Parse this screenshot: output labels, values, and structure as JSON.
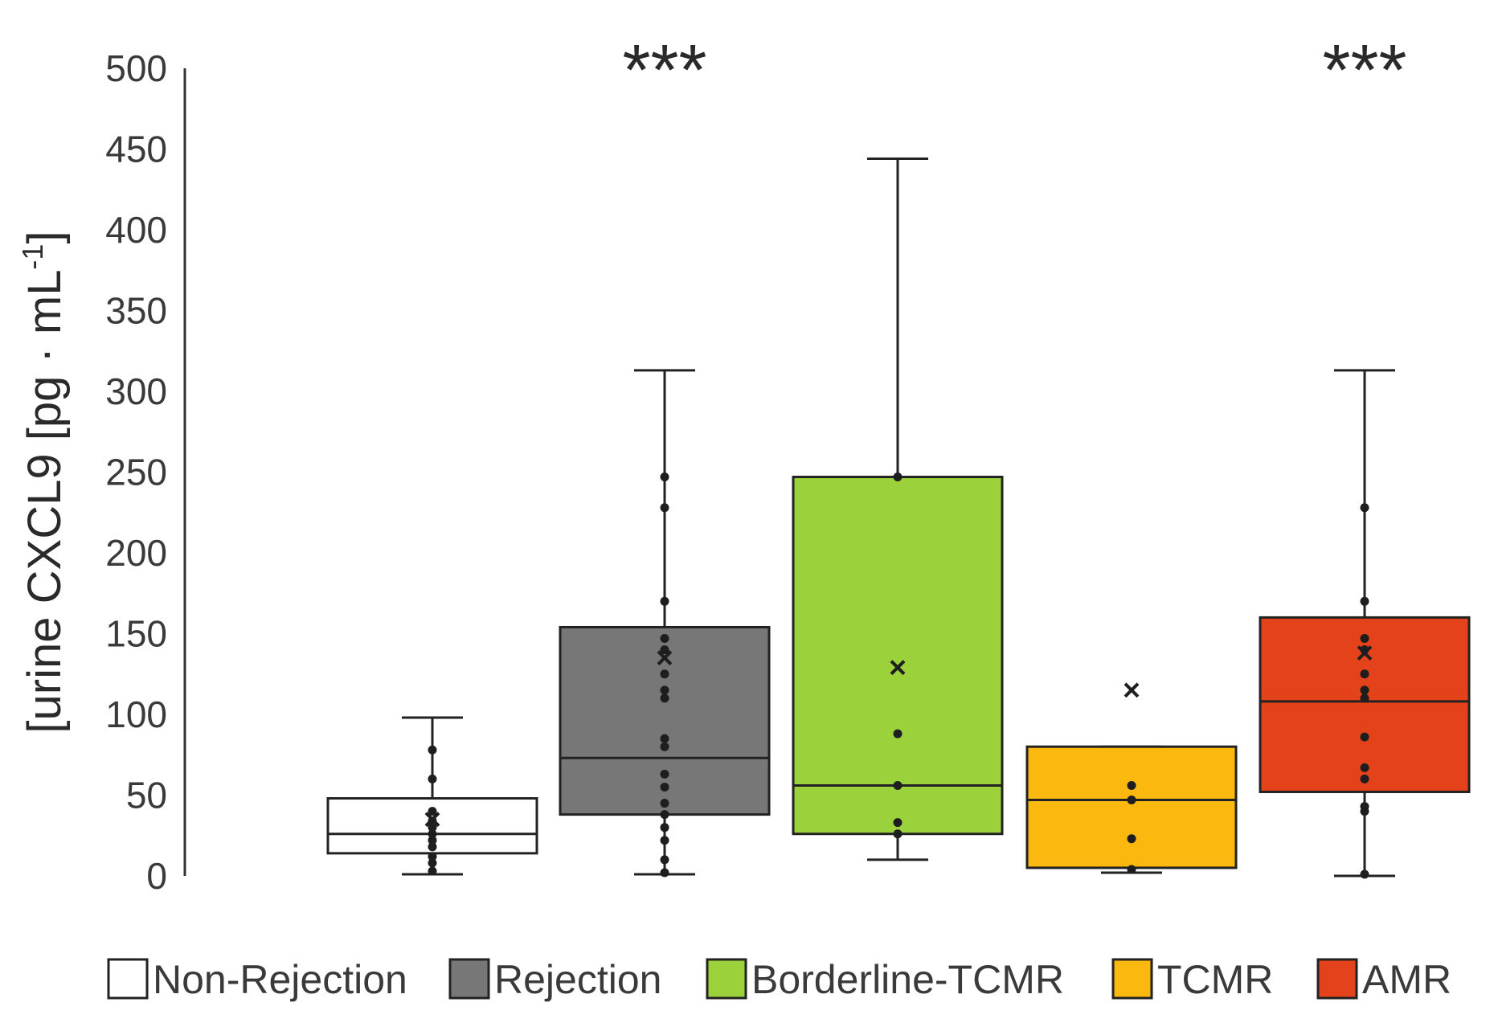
{
  "chart_data": {
    "type": "box",
    "ylabel": "[urine CXCL9 [pg · mL",
    "ylabel_superscript": "-1",
    "ylabel_close": "]",
    "ylim": [
      0,
      500
    ],
    "yticks": [
      0,
      50,
      100,
      150,
      200,
      250,
      300,
      350,
      400,
      450,
      500
    ],
    "grid": false,
    "legend_position": "bottom",
    "series": [
      {
        "name": "Non-Rejection",
        "color": "#ffffff",
        "min": 1,
        "q1": 14,
        "median": 26,
        "q3": 48,
        "max": 98,
        "mean": 35,
        "points": [
          3,
          8,
          12,
          18,
          22,
          26,
          30,
          34,
          40,
          60,
          78
        ],
        "significance": ""
      },
      {
        "name": "Rejection",
        "color": "#777777",
        "min": 1,
        "q1": 38,
        "median": 73,
        "q3": 154,
        "max": 313,
        "mean": 135,
        "points": [
          2,
          10,
          22,
          30,
          38,
          45,
          55,
          63,
          80,
          85,
          110,
          115,
          125,
          140,
          147,
          170,
          228,
          247
        ],
        "significance": "***"
      },
      {
        "name": "Borderline-TCMR",
        "color": "#9bd13b",
        "min": 10,
        "q1": 26,
        "median": 56,
        "q3": 247,
        "max": 444,
        "mean": 129,
        "points": [
          26,
          33,
          56,
          88,
          247
        ],
        "significance": ""
      },
      {
        "name": "TCMR",
        "color": "#fbb80f",
        "min": 2,
        "q1": 5,
        "median": 47,
        "q3": 80,
        "max": 80,
        "mean": 115,
        "points": [
          4,
          23,
          47,
          56
        ],
        "significance": ""
      },
      {
        "name": "AMR",
        "color": "#e4421a",
        "min": 0,
        "q1": 52,
        "median": 108,
        "q3": 160,
        "max": 313,
        "mean": 138,
        "points": [
          1,
          40,
          43,
          60,
          67,
          86,
          110,
          115,
          125,
          140,
          147,
          170,
          228
        ],
        "significance": "***"
      }
    ]
  }
}
